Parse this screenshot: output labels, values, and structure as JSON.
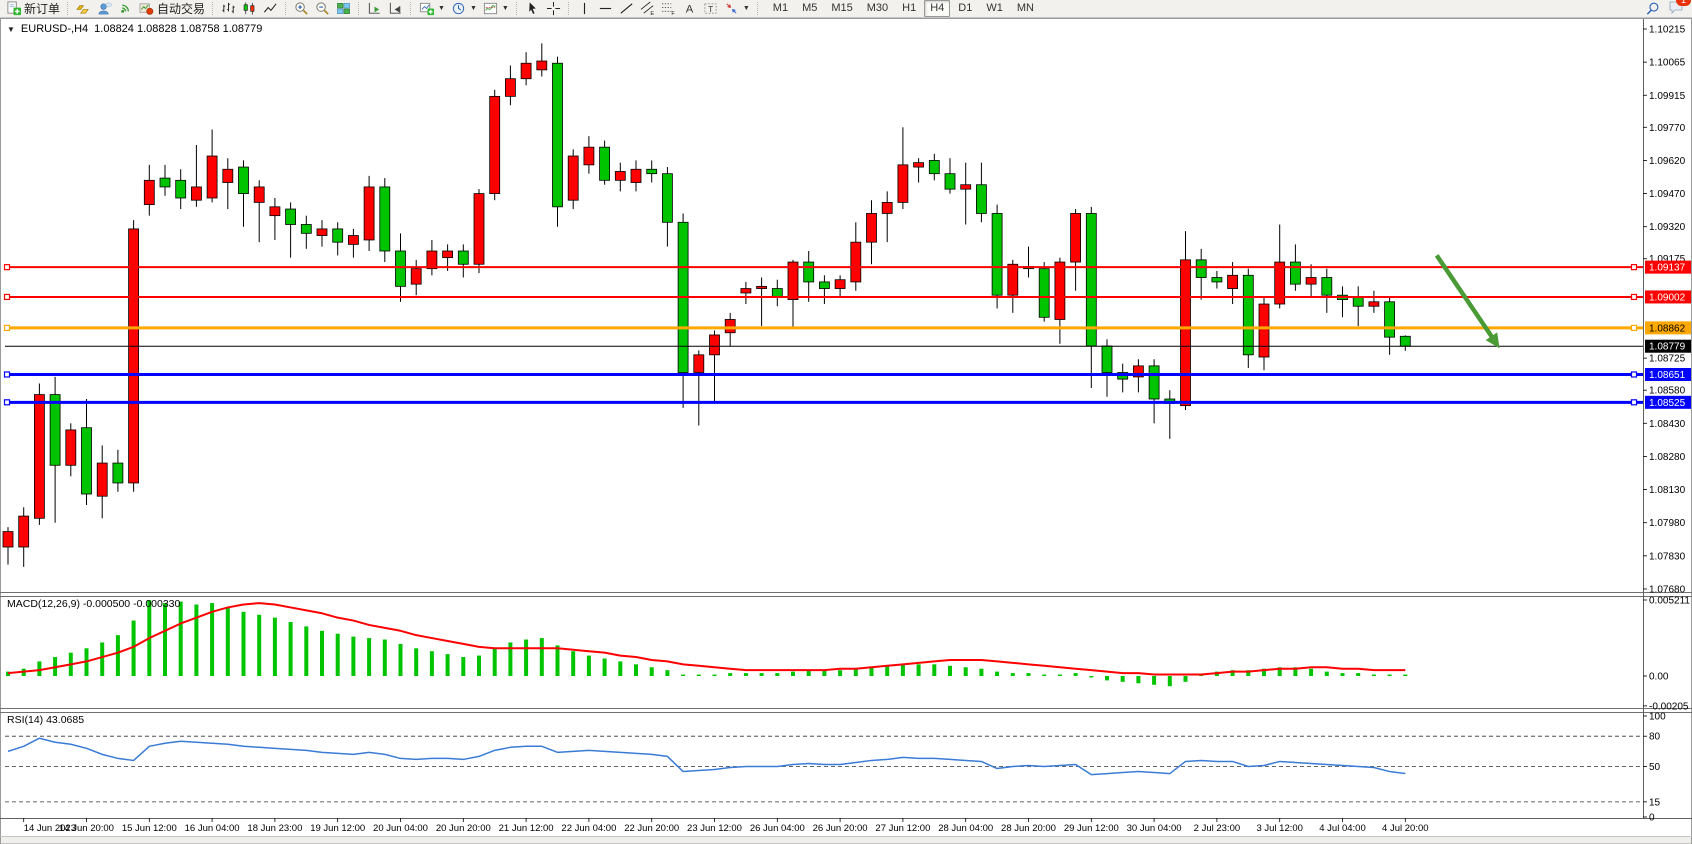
{
  "toolbar": {
    "new_order_label": "新订单",
    "auto_trading_label": "自动交易",
    "timeframes": [
      "M1",
      "M5",
      "M15",
      "M30",
      "H1",
      "H4",
      "D1",
      "W1",
      "MN"
    ],
    "active_timeframe": "H4",
    "notification_badge": "1"
  },
  "chart_header": {
    "collapse_icon": "▼",
    "symbol_period": "EURUSD-,H4",
    "quote": "1.08824 1.08828 1.08758 1.08779"
  },
  "panes": {
    "macd_label": "MACD(12,26,9) -0.000500 -0.000330",
    "rsi_label": "RSI(14) 43.0685"
  },
  "colors": {
    "candle_up": "#ff0000",
    "candle_down": "#00c400",
    "candle_outline": "#000000",
    "macd_hist": "#00c400",
    "macd_signal": "#ff0000",
    "rsi_line": "#3a7bd5",
    "line_red": "#ff0000",
    "line_orange": "#ffa800",
    "line_blue": "#0000ff",
    "bid_line": "#000000",
    "arrow_green": "#4a9b35"
  },
  "chart_data": {
    "type": "candlestick+indicators",
    "symbol": "EURUSD-",
    "timeframe": "H4",
    "ohlc_current": {
      "open": 1.08824,
      "high": 1.08828,
      "low": 1.08758,
      "close": 1.08779
    },
    "main": {
      "ylim": [
        1.0768,
        1.10215
      ],
      "price_axis_ticks": [
        "1.10215",
        "1.10065",
        "1.09915",
        "1.09770",
        "1.09620",
        "1.09470",
        "1.09320",
        "1.09175",
        "1.08725",
        "1.08580",
        "1.08430",
        "1.08280",
        "1.08130",
        "1.07980",
        "1.07830",
        "1.07680"
      ],
      "candles": [
        [
          1.0787,
          1.0796,
          1.0779,
          1.0794
        ],
        [
          1.0787,
          1.0805,
          1.0778,
          1.0801
        ],
        [
          1.08,
          1.0861,
          1.0797,
          1.0856
        ],
        [
          1.0856,
          1.0864,
          1.0798,
          1.0824
        ],
        [
          1.0824,
          1.0843,
          1.0819,
          1.084
        ],
        [
          1.0841,
          1.0854,
          1.0806,
          1.0811
        ],
        [
          1.081,
          1.0833,
          1.08,
          1.0825
        ],
        [
          1.0825,
          1.0831,
          1.0812,
          1.0816
        ],
        [
          1.0816,
          1.0935,
          1.0812,
          1.0931
        ],
        [
          1.0942,
          1.096,
          1.0937,
          1.0953
        ],
        [
          1.0954,
          1.096,
          1.0946,
          1.095
        ],
        [
          1.0953,
          1.0958,
          1.094,
          1.0945
        ],
        [
          1.0944,
          1.0969,
          1.0941,
          1.095
        ],
        [
          1.0945,
          1.0976,
          1.0943,
          1.0964
        ],
        [
          1.0952,
          1.0963,
          1.094,
          1.0958
        ],
        [
          1.0959,
          1.0962,
          1.0932,
          1.0947
        ],
        [
          1.0943,
          1.0953,
          1.0925,
          1.095
        ],
        [
          1.0937,
          1.0945,
          1.0926,
          1.0941
        ],
        [
          1.094,
          1.0943,
          1.0918,
          1.0933
        ],
        [
          1.0933,
          1.0937,
          1.0922,
          1.0929
        ],
        [
          1.0928,
          1.0935,
          1.0923,
          1.0931
        ],
        [
          1.0931,
          1.0934,
          1.0919,
          1.0925
        ],
        [
          1.0924,
          1.0931,
          1.0918,
          1.0928
        ],
        [
          1.0926,
          1.0955,
          1.0921,
          1.095
        ],
        [
          1.095,
          1.0954,
          1.0916,
          1.0921
        ],
        [
          1.0921,
          1.0929,
          1.0898,
          1.0905
        ],
        [
          1.0906,
          1.0917,
          1.0901,
          1.0913
        ],
        [
          1.0913,
          1.0926,
          1.091,
          1.0921
        ],
        [
          1.0918,
          1.0924,
          1.0912,
          1.0921
        ],
        [
          1.0921,
          1.0924,
          1.0909,
          1.0915
        ],
        [
          1.0915,
          1.0949,
          1.0911,
          1.0947
        ],
        [
          1.0947,
          1.0994,
          1.0944,
          1.0991
        ],
        [
          1.0991,
          1.1005,
          1.0987,
          1.0999
        ],
        [
          1.0999,
          1.1011,
          1.0996,
          1.1006
        ],
        [
          1.1003,
          1.1015,
          1.1,
          1.1007
        ],
        [
          1.1006,
          1.1009,
          1.0932,
          1.0941
        ],
        [
          1.0944,
          1.0967,
          1.094,
          1.0964
        ],
        [
          1.096,
          1.0973,
          1.0956,
          1.0968
        ],
        [
          1.0968,
          1.0971,
          1.0951,
          1.0953
        ],
        [
          1.0953,
          1.0961,
          1.0948,
          1.0957
        ],
        [
          1.0952,
          1.0962,
          1.0948,
          1.0958
        ],
        [
          1.0958,
          1.0962,
          1.0952,
          1.0956
        ],
        [
          1.0956,
          1.0959,
          1.0923,
          1.0934
        ],
        [
          1.0934,
          1.0938,
          1.085,
          1.0866
        ],
        [
          1.0866,
          1.0876,
          1.0842,
          1.0874
        ],
        [
          1.0874,
          1.0885,
          1.0853,
          1.0883
        ],
        [
          1.0884,
          1.0893,
          1.0878,
          1.089
        ],
        [
          1.0902,
          1.0907,
          1.0897,
          1.0904
        ],
        [
          1.0904,
          1.0909,
          1.0887,
          1.0905
        ],
        [
          1.0904,
          1.0908,
          1.0896,
          1.09
        ],
        [
          1.0899,
          1.0917,
          1.0886,
          1.0916
        ],
        [
          1.0916,
          1.0921,
          1.0898,
          1.0907
        ],
        [
          1.0907,
          1.091,
          1.0897,
          1.0904
        ],
        [
          1.0904,
          1.091,
          1.09,
          1.0908
        ],
        [
          1.0907,
          1.0934,
          1.0903,
          1.0925
        ],
        [
          1.0925,
          1.0944,
          1.0915,
          1.0938
        ],
        [
          1.0938,
          1.0948,
          1.0925,
          1.0943
        ],
        [
          1.0943,
          1.0977,
          1.094,
          1.096
        ],
        [
          1.0959,
          1.0963,
          1.0952,
          1.0961
        ],
        [
          1.0962,
          1.0965,
          1.0953,
          1.0956
        ],
        [
          1.0956,
          1.0963,
          1.0947,
          1.0949
        ],
        [
          1.0949,
          1.0961,
          1.0933,
          1.0951
        ],
        [
          1.0951,
          1.0961,
          1.0934,
          1.0938
        ],
        [
          1.0938,
          1.0942,
          1.0895,
          1.0901
        ],
        [
          1.0901,
          1.0917,
          1.0893,
          1.0915
        ],
        [
          1.0914,
          1.0923,
          1.0909,
          1.0913
        ],
        [
          1.0913,
          1.0916,
          1.0889,
          1.0891
        ],
        [
          1.089,
          1.0918,
          1.0879,
          1.0916
        ],
        [
          1.0916,
          1.094,
          1.0903,
          1.0938
        ],
        [
          1.0938,
          1.0941,
          1.0859,
          1.0878
        ],
        [
          1.0878,
          1.0881,
          1.0855,
          1.0866
        ],
        [
          1.0866,
          1.087,
          1.0857,
          1.0863
        ],
        [
          1.0864,
          1.0872,
          1.0857,
          1.0869
        ],
        [
          1.0869,
          1.0872,
          1.0843,
          1.0854
        ],
        [
          1.0854,
          1.0858,
          1.0836,
          1.0852
        ],
        [
          1.0851,
          1.093,
          1.0849,
          1.0917
        ],
        [
          1.0917,
          1.0922,
          1.0899,
          1.0909
        ],
        [
          1.0909,
          1.0912,
          1.0904,
          1.0907
        ],
        [
          1.0904,
          1.0916,
          1.0897,
          1.091
        ],
        [
          1.091,
          1.0913,
          1.0868,
          1.0874
        ],
        [
          1.0873,
          1.09,
          1.0867,
          1.0897
        ],
        [
          1.0897,
          1.0933,
          1.0895,
          1.0916
        ],
        [
          1.0916,
          1.0924,
          1.0903,
          1.0906
        ],
        [
          1.0906,
          1.0915,
          1.09,
          1.0909
        ],
        [
          1.0909,
          1.0913,
          1.0893,
          1.0901
        ],
        [
          1.0901,
          1.0905,
          1.0891,
          1.0899
        ],
        [
          1.09,
          1.0905,
          1.0887,
          1.0896
        ],
        [
          1.0896,
          1.0903,
          1.0893,
          1.0898
        ],
        [
          1.0898,
          1.09,
          1.0874,
          1.0882
        ],
        [
          1.08824,
          1.08828,
          1.08758,
          1.08779
        ]
      ]
    },
    "hlines": [
      {
        "price": 1.09137,
        "label": "1.09137",
        "color": "#ff0000",
        "text_color": "#ffffff",
        "width": 2
      },
      {
        "price": 1.09002,
        "label": "1.09002",
        "color": "#ff0000",
        "text_color": "#ffffff",
        "width": 2
      },
      {
        "price": 1.08862,
        "label": "1.08862",
        "color": "#ffa800",
        "text_color": "#000000",
        "width": 3
      },
      {
        "price": 1.08651,
        "label": "1.08651",
        "color": "#0000ff",
        "text_color": "#ffffff",
        "width": 3
      },
      {
        "price": 1.08525,
        "label": "1.08525",
        "color": "#0000ff",
        "text_color": "#ffffff",
        "width": 3
      }
    ],
    "bid_line": {
      "price": 1.08779,
      "label": "1.08779",
      "color": "#000000",
      "text_color": "#ffffff"
    },
    "macd": {
      "title": "MACD(12,26,9)",
      "current_values": [
        "-0.000500",
        "-0.000330"
      ],
      "axis_ticks": [
        "0.005211",
        "0.00",
        "-0.00205"
      ],
      "axis_values": [
        0.005211,
        0,
        -0.00205
      ],
      "hist": [
        0.0003,
        0.0005,
        0.001,
        0.0013,
        0.0016,
        0.0019,
        0.0023,
        0.0028,
        0.0038,
        0.0052,
        0.005,
        0.0051,
        0.0049,
        0.005,
        0.0047,
        0.0044,
        0.0042,
        0.004,
        0.0037,
        0.0034,
        0.0031,
        0.0029,
        0.0027,
        0.0026,
        0.0025,
        0.0022,
        0.0019,
        0.0017,
        0.0015,
        0.0013,
        0.0014,
        0.0019,
        0.0023,
        0.0025,
        0.0026,
        0.0021,
        0.0017,
        0.0014,
        0.0012,
        0.001,
        0.0008,
        0.0006,
        0.0004,
        0.0001,
        0.0001,
        0.0001,
        0.0002,
        0.0002,
        0.0002,
        0.0002,
        0.0003,
        0.0004,
        0.0004,
        0.0004,
        0.0005,
        0.0006,
        0.0007,
        0.0008,
        0.0008,
        0.0008,
        0.0007,
        0.0006,
        0.0005,
        0.0003,
        0.0002,
        0.0002,
        0.0001,
        0.0001,
        0.0002,
        -0.0001,
        -0.0003,
        -0.0004,
        -0.0005,
        -0.0006,
        -0.0007,
        -0.0004,
        0.0001,
        0.0003,
        0.0004,
        0.0004,
        0.0005,
        0.0006,
        0.0006,
        0.0005,
        0.0003,
        0.0002,
        0.0002,
        0.0001,
        0.0001,
        0.0001
      ],
      "signal": [
        0.0002,
        0.0003,
        0.0004,
        0.0006,
        0.0008,
        0.001,
        0.0013,
        0.0016,
        0.002,
        0.0026,
        0.0031,
        0.0036,
        0.004,
        0.0044,
        0.0047,
        0.0049,
        0.005,
        0.0049,
        0.0047,
        0.0045,
        0.0043,
        0.004,
        0.0038,
        0.0035,
        0.0033,
        0.0031,
        0.0028,
        0.0026,
        0.0024,
        0.0022,
        0.002,
        0.0019,
        0.0019,
        0.0019,
        0.0019,
        0.0019,
        0.0018,
        0.0017,
        0.0016,
        0.0014,
        0.0013,
        0.0011,
        0.001,
        0.0008,
        0.0007,
        0.0006,
        0.0005,
        0.0004,
        0.0004,
        0.0004,
        0.0004,
        0.0004,
        0.0004,
        0.0005,
        0.0005,
        0.0006,
        0.0007,
        0.0008,
        0.0009,
        0.001,
        0.0011,
        0.0011,
        0.0011,
        0.001,
        0.0009,
        0.0008,
        0.0007,
        0.0006,
        0.0005,
        0.0004,
        0.0003,
        0.0002,
        0.0002,
        0.0001,
        0.0001,
        0.0001,
        0.0001,
        0.0002,
        0.0003,
        0.0003,
        0.0004,
        0.0005,
        0.0005,
        0.0006,
        0.0006,
        0.0005,
        0.0005,
        0.0004,
        0.0004,
        0.0004
      ]
    },
    "rsi": {
      "title": "RSI(14)",
      "current_value": 43.0685,
      "levels": [
        80,
        50,
        15
      ],
      "axis_ticks": [
        "100",
        "80",
        "50",
        "15",
        "0"
      ],
      "axis_values": [
        100,
        80,
        50,
        15,
        0
      ],
      "values": [
        65,
        70,
        78,
        74,
        72,
        68,
        62,
        58,
        56,
        70,
        73,
        75,
        74,
        73,
        72,
        70,
        69,
        68,
        67,
        66,
        64,
        63,
        62,
        64,
        62,
        58,
        57,
        58,
        58,
        57,
        60,
        66,
        69,
        70,
        70,
        64,
        65,
        66,
        65,
        64,
        63,
        62,
        60,
        45,
        46,
        47,
        49,
        50,
        50,
        50,
        52,
        53,
        52,
        52,
        54,
        56,
        57,
        59,
        58,
        58,
        57,
        56,
        55,
        48,
        50,
        51,
        50,
        51,
        52,
        42,
        43,
        44,
        45,
        44,
        43,
        55,
        56,
        55,
        55,
        50,
        51,
        55,
        54,
        53,
        52,
        51,
        50,
        49,
        45,
        43.07
      ]
    },
    "time_labels": [
      {
        "text": "14 Jun 2023",
        "bar": 1
      },
      {
        "text": "14 Jun 20:00",
        "bar": 5
      },
      {
        "text": "15 Jun 12:00",
        "bar": 9
      },
      {
        "text": "16 Jun 04:00",
        "bar": 13
      },
      {
        "text": "18 Jun 23:00",
        "bar": 17
      },
      {
        "text": "19 Jun 12:00",
        "bar": 21
      },
      {
        "text": "20 Jun 04:00",
        "bar": 25
      },
      {
        "text": "20 Jun 20:00",
        "bar": 29
      },
      {
        "text": "21 Jun 12:00",
        "bar": 33
      },
      {
        "text": "22 Jun 04:00",
        "bar": 37
      },
      {
        "text": "22 Jun 20:00",
        "bar": 41
      },
      {
        "text": "23 Jun 12:00",
        "bar": 45
      },
      {
        "text": "26 Jun 04:00",
        "bar": 49
      },
      {
        "text": "26 Jun 20:00",
        "bar": 53
      },
      {
        "text": "27 Jun 12:00",
        "bar": 57
      },
      {
        "text": "28 Jun 04:00",
        "bar": 61
      },
      {
        "text": "28 Jun 20:00",
        "bar": 65
      },
      {
        "text": "29 Jun 12:00",
        "bar": 69
      },
      {
        "text": "30 Jun 04:00",
        "bar": 73
      },
      {
        "text": "2 Jul 23:00",
        "bar": 77
      },
      {
        "text": "3 Jul 12:00",
        "bar": 81
      },
      {
        "text": "4 Jul 04:00",
        "bar": 85
      },
      {
        "text": "4 Jul 20:00",
        "bar": 89
      }
    ],
    "arrow": {
      "from_bar": 91,
      "from_price": 1.0919,
      "to_bar": 95,
      "to_price": 1.0877,
      "color": "#4a9b35"
    }
  }
}
